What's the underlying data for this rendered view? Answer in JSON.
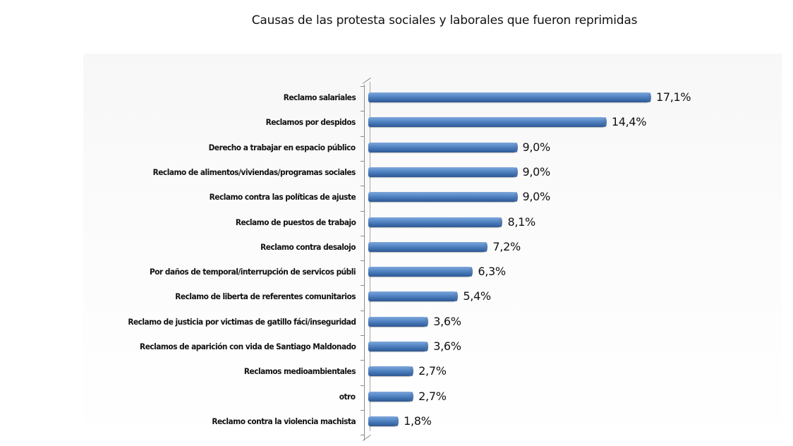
{
  "title": "Causas de las protesta sociales y laborales que fueron reprimidas",
  "chart_data": {
    "type": "bar",
    "orientation": "horizontal",
    "title": "Causas de las protesta sociales y laborales que fueron reprimidas",
    "xlabel": "",
    "ylabel": "",
    "categories": [
      "Reclamo salariales",
      "Reclamos por despidos",
      "Derecho a trabajar en espacio público",
      "Reclamo de alimentos/viviendas/programas sociales",
      "Reclamo contra las políticas de ajuste",
      "Reclamo de puestos de trabajo",
      "Reclamo contra desalojo",
      "Por daños de temporal/interrupción de servicos públi",
      "Reclamo de liberta de referentes comunitarios",
      "Reclamo de justicia por victimas de gatillo fáci/inseguridad",
      "Reclamos de aparición con vida de Santiago Maldonado",
      "Reclamos medioambientales",
      "otro",
      "Reclamo contra la violencia machista"
    ],
    "values": [
      17.1,
      14.4,
      9.0,
      9.0,
      9.0,
      8.1,
      7.2,
      6.3,
      5.4,
      3.6,
      3.6,
      2.7,
      2.7,
      1.8
    ],
    "value_labels": [
      "17,1%",
      "14,4%",
      "9,0%",
      "9,0%",
      "9,0%",
      "8,1%",
      "7,2%",
      "6,3%",
      "5,4%",
      "3,6%",
      "3,6%",
      "2,7%",
      "2,7%",
      "1,8%"
    ],
    "unit": "%",
    "grid": false,
    "legend": null,
    "xlim": [
      0,
      17.1
    ],
    "bar_color": "#4a7bbf",
    "style": "3d-cylinder"
  }
}
